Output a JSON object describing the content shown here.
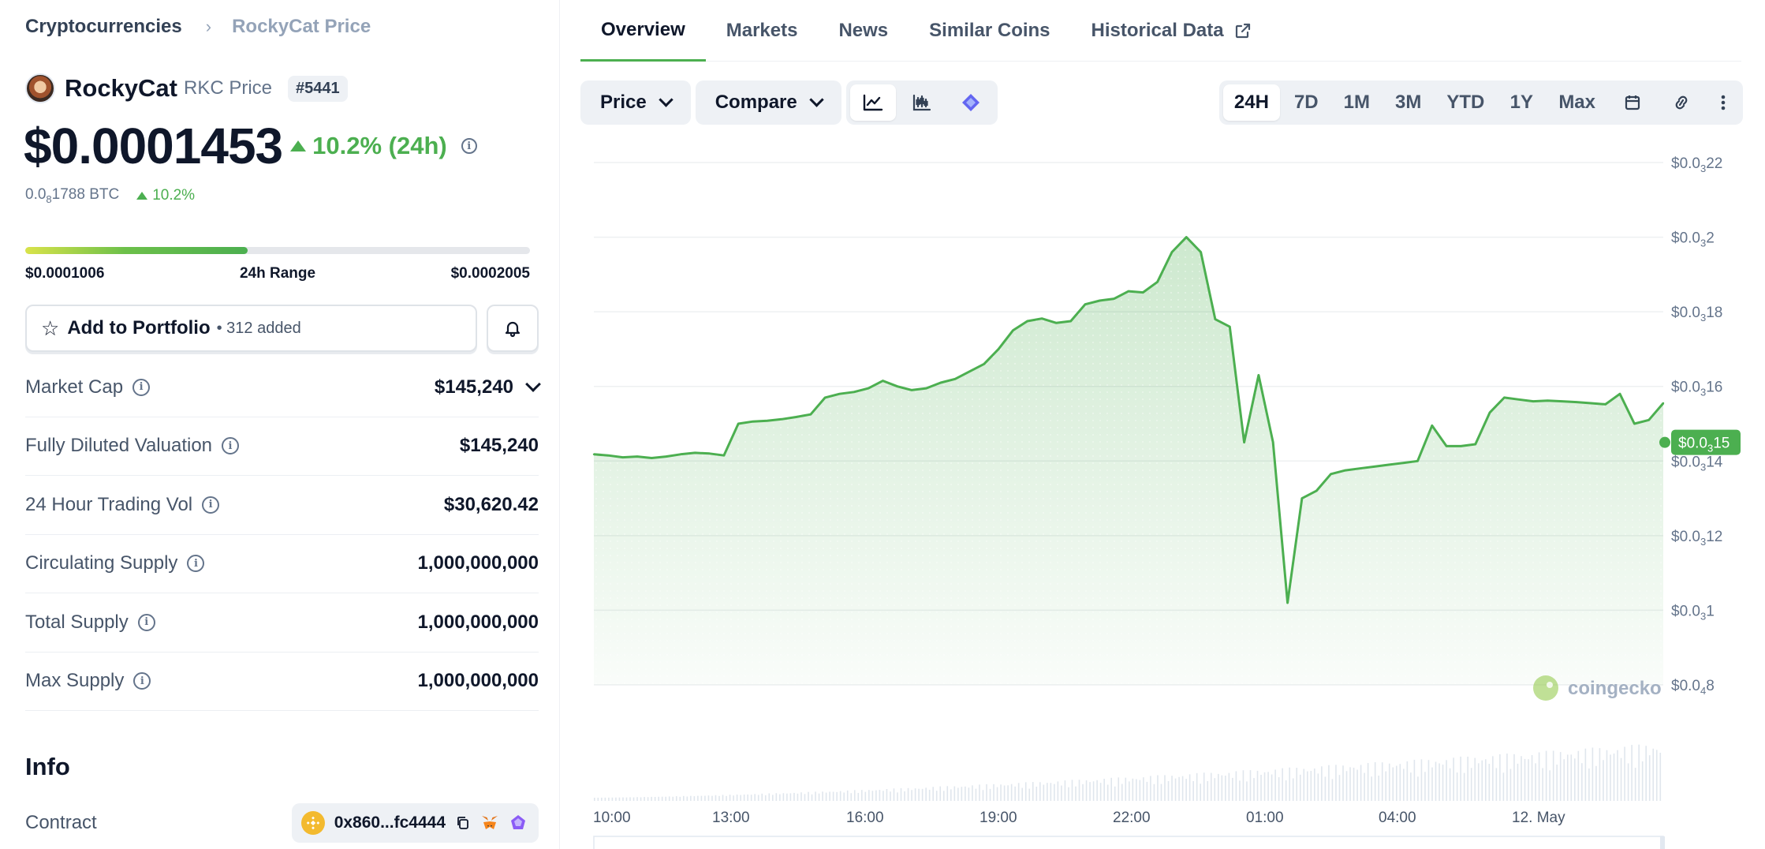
{
  "breadcrumb": {
    "root": "Cryptocurrencies",
    "current": "RockyCat Price"
  },
  "coin": {
    "name": "RockyCat",
    "symbol_label": "RKC Price",
    "rank": "#5441"
  },
  "price": {
    "usd": "$0.0001453",
    "change_24h": "10.2% (24h)",
    "btc_prefix": "0.0",
    "btc_sub": "8",
    "btc_rest": "1788 BTC",
    "btc_change": "10.2%"
  },
  "range": {
    "low": "$0.0001006",
    "label": "24h Range",
    "high": "$0.0002005",
    "position": 0.44
  },
  "portfolio": {
    "label": "Add to Portfolio",
    "count": "• 312 added"
  },
  "stats": [
    {
      "key": "Market Cap",
      "value": "$145,240",
      "expandable": true
    },
    {
      "key": "Fully Diluted Valuation",
      "value": "$145,240"
    },
    {
      "key": "24 Hour Trading Vol",
      "value": "$30,620.42"
    },
    {
      "key": "Circulating Supply",
      "value": "1,000,000,000"
    },
    {
      "key": "Total Supply",
      "value": "1,000,000,000"
    },
    {
      "key": "Max Supply",
      "value": "1,000,000,000"
    }
  ],
  "info": {
    "heading": "Info",
    "contract_label": "Contract",
    "contract_value": "0x860...fc4444"
  },
  "tabs": [
    "Overview",
    "Markets",
    "News",
    "Similar Coins",
    "Historical Data"
  ],
  "toolbar": {
    "price": "Price",
    "compare": "Compare"
  },
  "ranges": [
    "24H",
    "7D",
    "1M",
    "3M",
    "YTD",
    "1Y",
    "Max"
  ],
  "watermark": "coingecko",
  "colors": {
    "accent": "#4caf50",
    "text": "#0f172a",
    "muted": "#64748b"
  },
  "chart_data": {
    "type": "area",
    "ylim": [
      8e-05,
      0.00022
    ],
    "y_ticks": [
      {
        "v": 0.00022,
        "pre": "$0.0",
        "sub": "3",
        "post": "22"
      },
      {
        "v": 0.0002,
        "pre": "$0.0",
        "sub": "3",
        "post": "2"
      },
      {
        "v": 0.00018,
        "pre": "$0.0",
        "sub": "3",
        "post": "18"
      },
      {
        "v": 0.00016,
        "pre": "$0.0",
        "sub": "3",
        "post": "16"
      },
      {
        "v": 0.00014,
        "pre": "$0.0",
        "sub": "3",
        "post": "14"
      },
      {
        "v": 0.00012,
        "pre": "$0.0",
        "sub": "3",
        "post": "12"
      },
      {
        "v": 0.0001,
        "pre": "$0.0",
        "sub": "3",
        "post": "1"
      },
      {
        "v": 8e-05,
        "pre": "$0.0",
        "sub": "4",
        "post": "8"
      }
    ],
    "x_ticks": [
      "10:00",
      "13:00",
      "16:00",
      "19:00",
      "22:00",
      "01:00",
      "04:00",
      "12. May"
    ],
    "current": {
      "value": 0.000145,
      "pre": "$0.0",
      "sub": "3",
      "post": "15"
    },
    "values": [
      0.0001418,
      0.0001415,
      0.000141,
      0.0001412,
      0.0001408,
      0.0001412,
      0.0001418,
      0.0001422,
      0.000142,
      0.0001415,
      0.00015,
      0.0001506,
      0.0001508,
      0.0001512,
      0.0001518,
      0.0001525,
      0.000157,
      0.000158,
      0.0001585,
      0.0001595,
      0.0001615,
      0.00016,
      0.000159,
      0.0001595,
      0.000161,
      0.000162,
      0.000164,
      0.000166,
      0.00017,
      0.000175,
      0.0001775,
      0.0001782,
      0.000177,
      0.0001775,
      0.000182,
      0.000183,
      0.0001835,
      0.0001855,
      0.0001852,
      0.000188,
      0.000196,
      0.0002,
      0.000196,
      0.000178,
      0.000176,
      0.000145,
      0.000163,
      0.000145,
      0.000102,
      0.00013,
      0.000132,
      0.0001365,
      0.0001375,
      0.000138,
      0.0001385,
      0.000139,
      0.0001395,
      0.00014,
      0.0001495,
      0.000144,
      0.000144,
      0.0001445,
      0.000153,
      0.000157,
      0.0001565,
      0.000156,
      0.0001562,
      0.000156,
      0.0001558,
      0.0001555,
      0.0001552,
      0.000158,
      0.00015,
      0.000151,
      0.0001555
    ]
  }
}
